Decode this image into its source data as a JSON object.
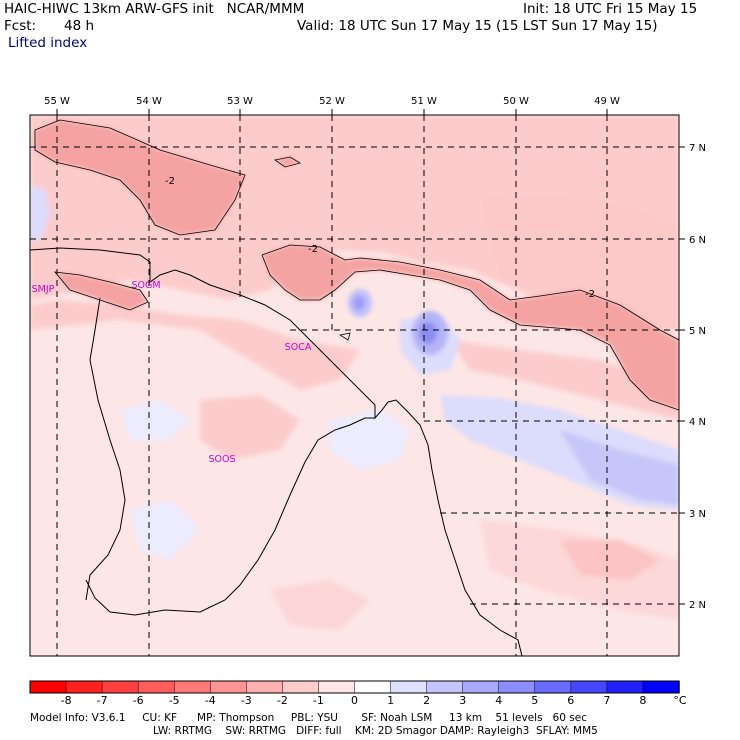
{
  "header": {
    "title_left": "HAIC-HIWC 13km ARW-GFS init   NCAR/MMM",
    "init": "Init: 18 UTC Fri 15 May 15",
    "fcst_label": "Fcst:",
    "fcst_value": "48 h",
    "valid": "Valid: 18 UTC Sun 17 May 15 (15 LST Sun 17 May 15)",
    "field": "Lifted index"
  },
  "map": {
    "lon_labels": [
      "55 W",
      "54 W",
      "53 W",
      "52 W",
      "51 W",
      "50 W",
      "49 W"
    ],
    "lat_labels": [
      "7 N",
      "6 N",
      "5 N",
      "4 N",
      "3 N",
      "2 N"
    ],
    "contour_labels": [
      "-2",
      "-2",
      "-2"
    ],
    "stations": [
      "SMJP",
      "SOGM",
      "SOCA",
      "SOOS"
    ],
    "station_color": "#cc00cc"
  },
  "colorbar": {
    "labels": [
      "-8",
      "-7",
      "-6",
      "-5",
      "-4",
      "-3",
      "-2",
      "-1",
      "0",
      "1",
      "2",
      "3",
      "4",
      "5",
      "6",
      "7",
      "8"
    ],
    "unit": "°C",
    "colors": [
      "#ff0000",
      "#ff2020",
      "#ff4040",
      "#ff5c5c",
      "#ff7878",
      "#ff9494",
      "#ffb0b0",
      "#ffcccc",
      "#ffe6e6",
      "#ffffff",
      "#e0e0ff",
      "#c4c4ff",
      "#a8a8ff",
      "#8c8cff",
      "#6a6aff",
      "#4646ff",
      "#2020ff",
      "#0000ff"
    ]
  },
  "footer": {
    "line1": "Model Info: V3.6.1     CU: KF      MP: Thompson     PBL: YSU       SF: Noah LSM     13 km    51 levels   60 sec",
    "line2": "LW: RRTMG    SW: RRTMG   DIFF: full    KM: 2D Smagor DAMP: Rayleigh3  SFLAY: MM5"
  }
}
